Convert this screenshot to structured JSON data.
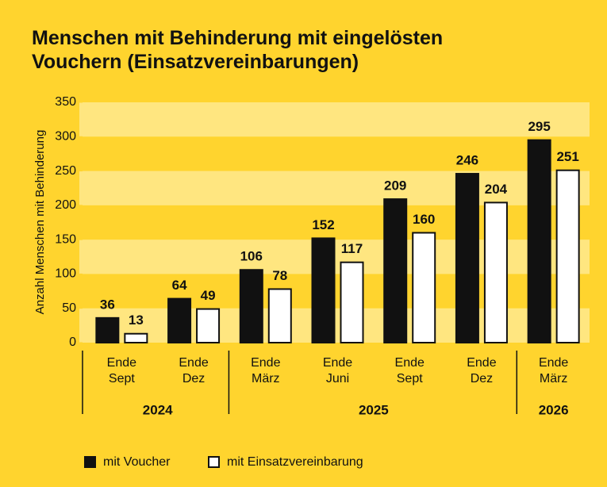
{
  "chart_data": {
    "type": "bar",
    "title": [
      "Menschen mit Behinderung mit eingelösten",
      "Vouchern (Einsatzvereinbarungen)"
    ],
    "y_label": "Anzahl Menschen mit Behinderung",
    "categories": [
      "Ende Sept",
      "Ende Dez",
      "Ende März",
      "Ende Juni",
      "Ende Sept",
      "Ende Dez",
      "Ende März"
    ],
    "x_groups": [
      {
        "label": "2024",
        "count": 2
      },
      {
        "label": "2025",
        "count": 4
      },
      {
        "label": "2026",
        "count": 1
      }
    ],
    "series": [
      {
        "name": "mit Voucher",
        "color": "#111111",
        "values": [
          36,
          64,
          106,
          152,
          209,
          246,
          295
        ]
      },
      {
        "name": "mit Einsatzvereinbarung",
        "color": "#ffffff",
        "values": [
          13,
          49,
          78,
          117,
          160,
          204,
          251
        ]
      }
    ],
    "ylim": [
      0,
      350
    ],
    "yticks": [
      0,
      50,
      100,
      150,
      200,
      250,
      300,
      350
    ]
  }
}
